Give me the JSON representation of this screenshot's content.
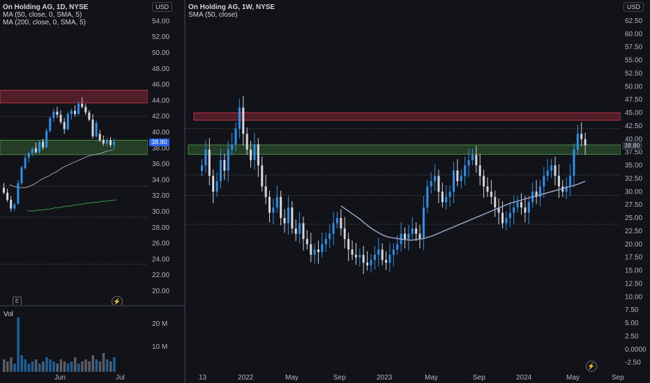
{
  "colors": {
    "up": "#2e90e8",
    "down": "#d6d6dc",
    "zone_red": "#c23447",
    "zone_green": "#4b8a45",
    "ma50": "#9a9eaa",
    "ma200": "#3a9b45",
    "sma_weekly": "#9aa3c8",
    "price_tag": "#2962ff",
    "dotted": "#555a66"
  },
  "left_chart": {
    "title": "On Holding AG, 1D, NYSE",
    "ma_lines": [
      "MA (50, close, 0, SMA, 5)",
      "MA (200, close, 0, SMA, 5)"
    ],
    "currency": "USD",
    "price_tag": "38.80",
    "y_ticks": [
      "54.00",
      "52.00",
      "50.00",
      "48.00",
      "46.00",
      "44.00",
      "42.00",
      "40.00",
      "38.00",
      "36.00",
      "34.00",
      "32.00",
      "30.00",
      "28.00",
      "26.00",
      "24.00",
      "22.00",
      "20.00"
    ],
    "x_ticks": [
      "Jun",
      "Jul"
    ],
    "volume_label": "Vol",
    "volume_ticks": [
      "20 M",
      "10 M"
    ],
    "event_icon": "earnings-icon",
    "flash_icon": "flash-icon",
    "zones": [
      {
        "type": "resistance",
        "low": 43.7,
        "high": 45.3
      },
      {
        "type": "support",
        "low": 37.2,
        "high": 39.0
      }
    ],
    "dotted_levels": [
      42.0,
      33.2,
      29.3,
      23.4
    ],
    "candles": [
      {
        "o": 33.0,
        "h": 33.6,
        "l": 32.2,
        "c": 32.4
      },
      {
        "o": 32.4,
        "h": 32.9,
        "l": 31.2,
        "c": 31.5
      },
      {
        "o": 31.5,
        "h": 32.0,
        "l": 30.0,
        "c": 30.4
      },
      {
        "o": 30.4,
        "h": 31.2,
        "l": 30.1,
        "c": 30.9
      },
      {
        "o": 31.0,
        "h": 34.0,
        "l": 30.9,
        "c": 33.6
      },
      {
        "o": 33.6,
        "h": 35.8,
        "l": 33.4,
        "c": 35.6
      },
      {
        "o": 35.5,
        "h": 37.2,
        "l": 35.3,
        "c": 36.8
      },
      {
        "o": 36.8,
        "h": 37.5,
        "l": 36.2,
        "c": 37.4
      },
      {
        "o": 37.4,
        "h": 38.2,
        "l": 37.0,
        "c": 37.9
      },
      {
        "o": 38.0,
        "h": 38.7,
        "l": 37.3,
        "c": 37.5
      },
      {
        "o": 37.5,
        "h": 39.0,
        "l": 37.3,
        "c": 38.8
      },
      {
        "o": 38.8,
        "h": 39.2,
        "l": 37.8,
        "c": 38.1
      },
      {
        "o": 38.1,
        "h": 40.5,
        "l": 38.0,
        "c": 40.2
      },
      {
        "o": 40.2,
        "h": 42.0,
        "l": 40.0,
        "c": 41.8
      },
      {
        "o": 41.8,
        "h": 43.0,
        "l": 41.3,
        "c": 42.6
      },
      {
        "o": 42.6,
        "h": 43.2,
        "l": 41.8,
        "c": 42.2
      },
      {
        "o": 42.2,
        "h": 42.8,
        "l": 41.0,
        "c": 41.3
      },
      {
        "o": 41.3,
        "h": 41.8,
        "l": 39.8,
        "c": 40.4
      },
      {
        "o": 40.4,
        "h": 42.6,
        "l": 40.2,
        "c": 42.3
      },
      {
        "o": 42.3,
        "h": 43.0,
        "l": 41.6,
        "c": 42.7
      },
      {
        "o": 42.7,
        "h": 43.4,
        "l": 42.0,
        "c": 42.3
      },
      {
        "o": 42.3,
        "h": 43.9,
        "l": 42.1,
        "c": 43.6
      },
      {
        "o": 43.6,
        "h": 44.4,
        "l": 43.0,
        "c": 43.2
      },
      {
        "o": 43.2,
        "h": 43.6,
        "l": 42.2,
        "c": 42.5
      },
      {
        "o": 42.5,
        "h": 42.8,
        "l": 41.4,
        "c": 41.6
      },
      {
        "o": 41.6,
        "h": 42.3,
        "l": 39.2,
        "c": 39.5
      },
      {
        "o": 39.5,
        "h": 41.5,
        "l": 39.3,
        "c": 41.2
      },
      {
        "o": 39.8,
        "h": 40.3,
        "l": 38.8,
        "c": 39.0
      },
      {
        "o": 39.0,
        "h": 39.6,
        "l": 38.3,
        "c": 38.6
      },
      {
        "o": 38.6,
        "h": 39.3,
        "l": 38.2,
        "c": 39.0
      },
      {
        "o": 39.0,
        "h": 39.4,
        "l": 38.1,
        "c": 38.4
      },
      {
        "o": 38.4,
        "h": 39.2,
        "l": 37.8,
        "c": 38.8
      }
    ],
    "volume": [
      6,
      5,
      7,
      4,
      5,
      8,
      6,
      4,
      5,
      6,
      4,
      5,
      7,
      6,
      5,
      4,
      6,
      5,
      4,
      5,
      7,
      4,
      5,
      6,
      5,
      8,
      6,
      5,
      9,
      6,
      5,
      7
    ],
    "volume_spike": 26,
    "ma50": [
      33.4,
      33.2,
      33.1,
      33.0,
      33.0,
      33.1,
      33.3,
      33.5,
      33.8,
      34.1,
      34.3,
      34.5,
      34.8,
      35.0,
      35.3,
      35.6,
      35.8,
      36.0,
      36.2,
      36.4,
      36.6,
      36.8,
      37.0,
      37.1,
      37.2,
      37.3,
      37.4,
      37.6,
      37.7,
      37.8
    ],
    "ma200": [
      30.1,
      30.1,
      30.1,
      30.2,
      30.2,
      30.3,
      30.3,
      30.4,
      30.5,
      30.5,
      30.6,
      30.7,
      30.7,
      30.8,
      30.9,
      30.9,
      31.0,
      31.1,
      31.1,
      31.2,
      31.2,
      31.3,
      31.3,
      31.4,
      31.4,
      31.5
    ]
  },
  "right_chart": {
    "title": "On Holding AG, 1W, NYSE",
    "sma_line": "SMA (50, close)",
    "currency": "USD",
    "price_tag": "38.80",
    "y_ticks": [
      "62.50",
      "60.00",
      "57.50",
      "55.00",
      "52.50",
      "50.00",
      "47.50",
      "45.00",
      "42.50",
      "40.00",
      "37.50",
      "35.00",
      "32.50",
      "30.00",
      "27.50",
      "25.00",
      "22.50",
      "20.00",
      "17.50",
      "15.00",
      "12.50",
      "10.00",
      "7.50",
      "5.00",
      "2.50",
      "0.0000",
      "-2.50"
    ],
    "x_ticks": [
      "13",
      "2022",
      "May",
      "Sep",
      "2023",
      "May",
      "Sep",
      "2024",
      "May",
      "Sep"
    ],
    "flash_icon": "flash-icon",
    "zones": [
      {
        "type": "resistance",
        "low": 43.6,
        "high": 45.0
      },
      {
        "type": "support",
        "low": 37.1,
        "high": 38.9
      }
    ],
    "dotted_levels": [
      42.0,
      33.2,
      29.3,
      23.8
    ],
    "closes": [
      35,
      38,
      33,
      30,
      32,
      36,
      34,
      38,
      39,
      42,
      46,
      41,
      38,
      36,
      39,
      35,
      31,
      29,
      26,
      27,
      29,
      25,
      24,
      27,
      23,
      22,
      24,
      21,
      20,
      18,
      19,
      18.5,
      20,
      21,
      22,
      24,
      25,
      23,
      21,
      19,
      18,
      17.5,
      18,
      16.5,
      16,
      17,
      18,
      19,
      17,
      16.5,
      18,
      19,
      20,
      22,
      21,
      22,
      23,
      22,
      21,
      27,
      31,
      32,
      33,
      30,
      28,
      29,
      30,
      34,
      32,
      33,
      35,
      36,
      37,
      35,
      33,
      31,
      30,
      29,
      27,
      26,
      24,
      25,
      26,
      27,
      28,
      27,
      26,
      28,
      30,
      29,
      31,
      33,
      34,
      35,
      33,
      31,
      30,
      31,
      33,
      38,
      41,
      40,
      38.8
    ],
    "sma": [
      null,
      null,
      null,
      null,
      null,
      null,
      null,
      null,
      null,
      null,
      null,
      null,
      null,
      null,
      null,
      null,
      null,
      null,
      null,
      null,
      null,
      null,
      null,
      null,
      null,
      null,
      null,
      null,
      27.3,
      26.8,
      26.3,
      25.8,
      25.3,
      24.8,
      24.2,
      23.6,
      23.1,
      22.6,
      22.2,
      21.8,
      21.5,
      21.3,
      21.2,
      21.1,
      21.0,
      20.9,
      20.8,
      20.8,
      20.9,
      21.0,
      21.1,
      21.3,
      21.5,
      21.8,
      22.1,
      22.4,
      22.7,
      23.0,
      23.3,
      23.6,
      23.9,
      24.2,
      24.5,
      24.8,
      25.1,
      25.4,
      25.7,
      26.0,
      26.3,
      26.6,
      26.9,
      27.2,
      27.5,
      27.8,
      28.0,
      28.2,
      28.4,
      28.6,
      28.8,
      29.0,
      29.2,
      29.4,
      29.6,
      29.8,
      30.0,
      30.2,
      30.4,
      30.6,
      30.8,
      31.0,
      31.2,
      31.4,
      31.7,
      32.0
    ]
  }
}
